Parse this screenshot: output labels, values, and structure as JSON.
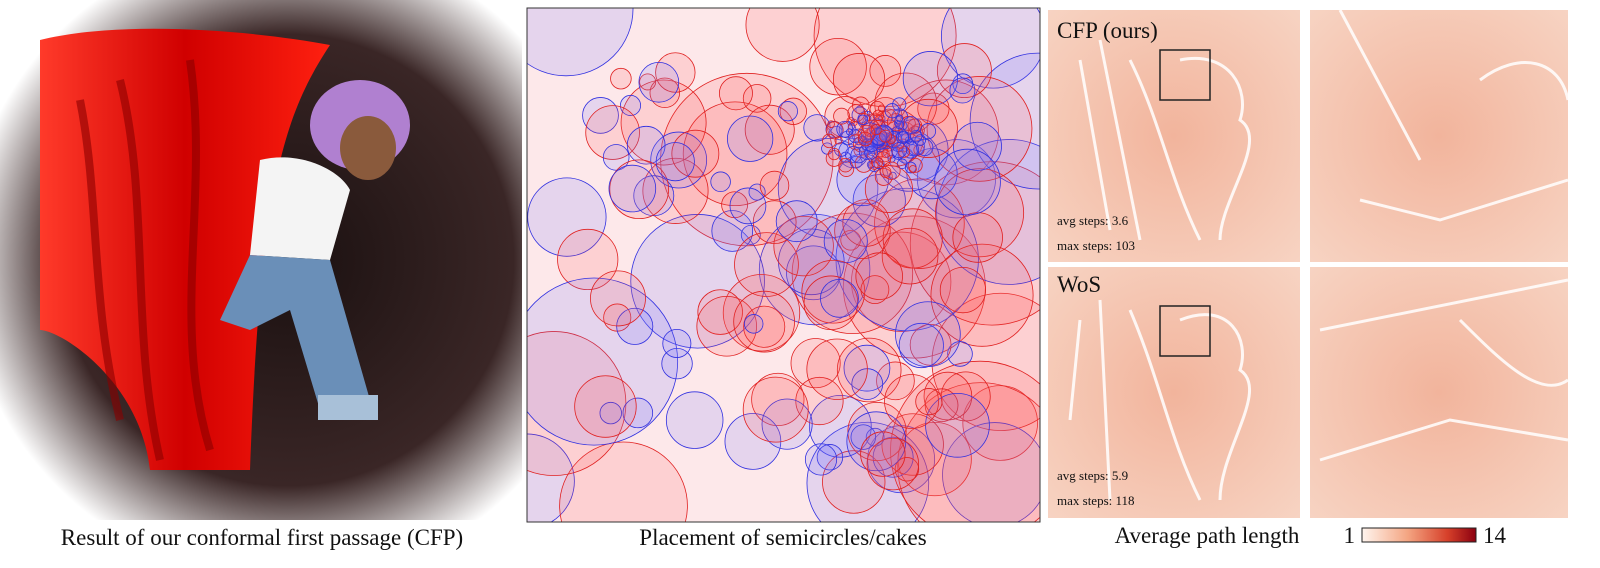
{
  "panels": [
    {
      "caption": "Result of our conformal first passage (CFP)"
    },
    {
      "caption": "Placement of semicircles/cakes"
    },
    {
      "caption": "Average path length",
      "insets": [
        {
          "label": "CFP (ours)",
          "stats": [
            "avg steps: 3.6",
            "max steps: 103"
          ]
        },
        {
          "label": "WoS",
          "stats": [
            "avg steps: 5.9",
            "max steps: 118"
          ]
        }
      ],
      "colorbar": {
        "min": "1",
        "max": "14"
      }
    }
  ]
}
